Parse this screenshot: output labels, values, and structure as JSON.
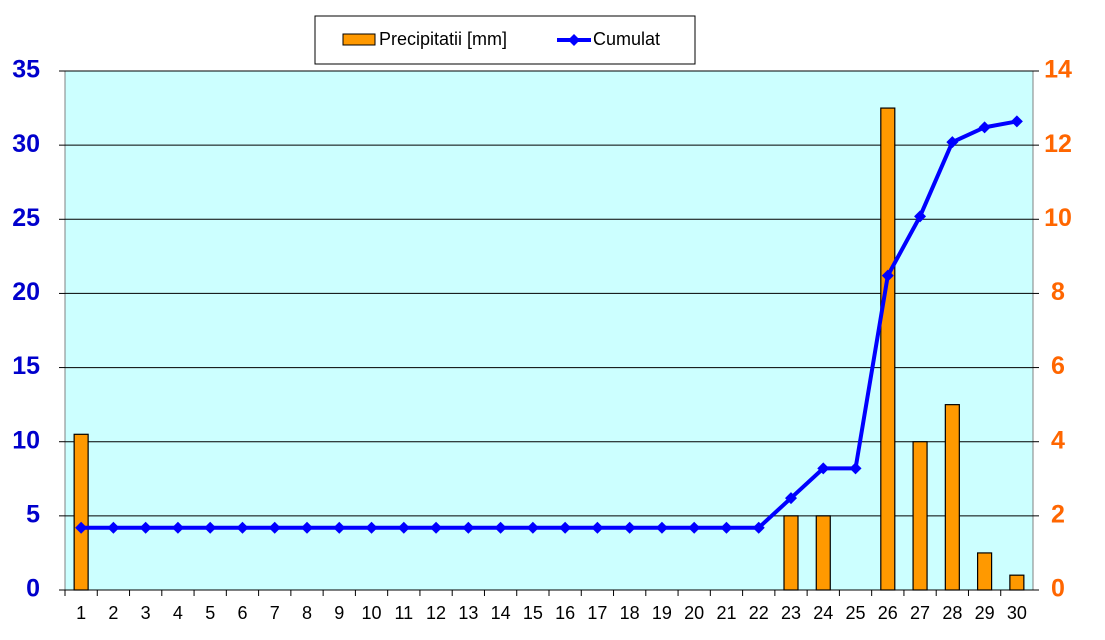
{
  "chart_data": {
    "type": "bar-line",
    "categories": [
      1,
      2,
      3,
      4,
      5,
      6,
      7,
      8,
      9,
      10,
      11,
      12,
      13,
      14,
      15,
      16,
      17,
      18,
      19,
      20,
      21,
      22,
      23,
      24,
      25,
      26,
      27,
      28,
      29,
      30
    ],
    "series": [
      {
        "name": "Precipitatii [mm]",
        "type": "bar",
        "axis": "y2",
        "color": "#ff9900",
        "values": [
          4.2,
          0,
          0,
          0,
          0,
          0,
          0,
          0,
          0,
          0,
          0,
          0,
          0,
          0,
          0,
          0,
          0,
          0,
          0,
          0,
          0,
          0,
          2,
          2,
          0,
          13,
          4,
          5,
          1,
          0.4
        ]
      },
      {
        "name": "Cumulat",
        "type": "line",
        "color": "#0000ff",
        "values": [
          4.2,
          4.2,
          4.2,
          4.2,
          4.2,
          4.2,
          4.2,
          4.2,
          4.2,
          4.2,
          4.2,
          4.2,
          4.2,
          4.2,
          4.2,
          4.2,
          4.2,
          4.2,
          4.2,
          4.2,
          4.2,
          4.2,
          6.2,
          8.2,
          8.2,
          21.2,
          25.2,
          30.2,
          31.2,
          31.6
        ]
      }
    ],
    "ylim": [
      0,
      35
    ],
    "yticks": [
      0,
      5,
      10,
      15,
      20,
      25,
      30,
      35
    ],
    "y2lim": [
      0,
      14
    ],
    "y2ticks": [
      0,
      2,
      4,
      6,
      8,
      10,
      12,
      14
    ],
    "ycolor": "#0000cc",
    "y2color": "#ff6600",
    "plot_background": "#ccffff",
    "grid": true
  }
}
